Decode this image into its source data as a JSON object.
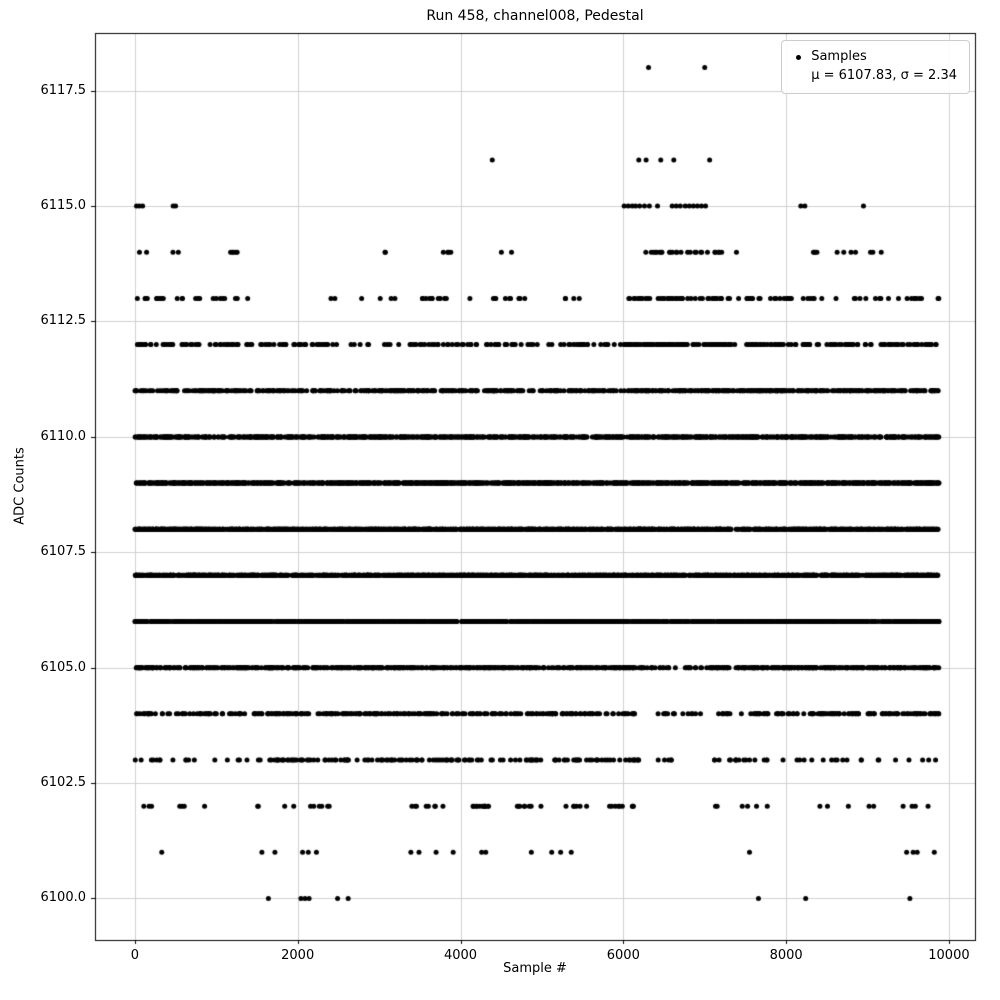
{
  "chart_data": {
    "type": "scatter",
    "title": "Run 458, channel008, Pedestal",
    "xlabel": "Sample #",
    "ylabel": "ADC Counts",
    "xlim": [
      -490,
      10320
    ],
    "ylim": [
      6099.1,
      6118.75
    ],
    "xticks": [
      0,
      2000,
      4000,
      6000,
      8000,
      10000
    ],
    "xtick_labels": [
      "0",
      "2000",
      "4000",
      "6000",
      "8000",
      "10000"
    ],
    "yticks": [
      6100.0,
      6102.5,
      6105.0,
      6107.5,
      6110.0,
      6112.5,
      6115.0,
      6117.5
    ],
    "ytick_labels": [
      "6100.0",
      "6102.5",
      "6105.0",
      "6107.5",
      "6110.0",
      "6112.5",
      "6115.0",
      "6117.5"
    ],
    "grid": true,
    "legend": {
      "position": "upper right",
      "marker_label": "Samples",
      "stats_label": "μ = 6107.83, σ = 2.34"
    },
    "stats": {
      "mean": 6107.83,
      "sigma": 2.34
    },
    "marker": {
      "color": "#000000",
      "radius_px": 2.5
    },
    "grid_color": "#d0d0d0",
    "axis_color": "#000000",
    "x_range": [
      0,
      9880
    ],
    "n_samples_approx": 10000,
    "bands": [
      {
        "adc": 6100,
        "x": [
          1640,
          2040,
          2090,
          2140,
          2490,
          2620,
          7660,
          8240,
          9520
        ]
      },
      {
        "adc": 6101,
        "x": [
          330,
          1560,
          1720,
          2060,
          2130,
          2230,
          3390,
          3490,
          3700,
          3910,
          4260,
          4310,
          4870,
          5120,
          5230,
          5360,
          7550,
          9480,
          9560,
          9610,
          9820
        ]
      },
      {
        "adc": 6102,
        "count": 75,
        "segments": [
          [
            100,
            900,
            0.08
          ],
          [
            1500,
            2600,
            0.18
          ],
          [
            3300,
            3950,
            0.14
          ],
          [
            4150,
            4350,
            0.06
          ],
          [
            4650,
            6150,
            0.28
          ],
          [
            6800,
            7800,
            0.08
          ],
          [
            8400,
            9200,
            0.08
          ],
          [
            9350,
            9880,
            0.1
          ]
        ]
      },
      {
        "adc": 6103,
        "count": 200,
        "segments": [
          [
            0,
            1500,
            0.08
          ],
          [
            1500,
            3100,
            0.3
          ],
          [
            3100,
            4600,
            0.2
          ],
          [
            4600,
            6200,
            0.2
          ],
          [
            6400,
            6600,
            0.02
          ],
          [
            7100,
            7800,
            0.07
          ],
          [
            7900,
            9300,
            0.08
          ],
          [
            9300,
            9880,
            0.05
          ]
        ]
      },
      {
        "adc": 6104,
        "count": 440,
        "segments": [
          [
            0,
            1000,
            0.1
          ],
          [
            1000,
            1500,
            0.04
          ],
          [
            1500,
            3000,
            0.22
          ],
          [
            3000,
            6150,
            0.34
          ],
          [
            6400,
            7000,
            0.02
          ],
          [
            7100,
            9880,
            0.28
          ]
        ]
      },
      {
        "adc": 6105,
        "count": 820,
        "segments": [
          [
            0,
            6150,
            0.63
          ],
          [
            6150,
            7050,
            0.05
          ],
          [
            7050,
            9880,
            0.32
          ]
        ]
      },
      {
        "adc": 6106,
        "count": 1250,
        "segments": [
          [
            0,
            6250,
            0.65
          ],
          [
            6250,
            7050,
            0.05
          ],
          [
            7050,
            9880,
            0.3
          ]
        ]
      },
      {
        "adc": 6107,
        "count": 1600
      },
      {
        "adc": 6108,
        "count": 1700
      },
      {
        "adc": 6109,
        "count": 1500
      },
      {
        "adc": 6110,
        "count": 1100
      },
      {
        "adc": 6111,
        "count": 680,
        "segments": [
          [
            0,
            6000,
            0.55
          ],
          [
            6000,
            9880,
            0.45
          ]
        ]
      },
      {
        "adc": 6112,
        "count": 350,
        "segments": [
          [
            0,
            2400,
            0.22
          ],
          [
            2400,
            3000,
            0.02
          ],
          [
            3000,
            6050,
            0.2
          ],
          [
            6050,
            7650,
            0.33
          ],
          [
            7650,
            9880,
            0.23
          ]
        ]
      },
      {
        "adc": 6113,
        "count": 150,
        "segments": [
          [
            0,
            1300,
            0.15
          ],
          [
            1300,
            2900,
            0.04
          ],
          [
            2900,
            3200,
            0.04
          ],
          [
            3500,
            4000,
            0.05
          ],
          [
            4100,
            4800,
            0.06
          ],
          [
            5200,
            5500,
            0.03
          ],
          [
            6050,
            7600,
            0.38
          ],
          [
            7600,
            9880,
            0.25
          ]
        ]
      },
      {
        "adc": 6114,
        "count": 55,
        "segments": [
          [
            0,
            200,
            0.05
          ],
          [
            400,
            600,
            0.04
          ],
          [
            1150,
            1300,
            0.07
          ],
          [
            3050,
            3150,
            0.04
          ],
          [
            3700,
            3900,
            0.06
          ],
          [
            4400,
            4700,
            0.08
          ],
          [
            6100,
            7250,
            0.42
          ],
          [
            7350,
            7450,
            0.03
          ],
          [
            8300,
            8900,
            0.15
          ],
          [
            9000,
            9200,
            0.06
          ]
        ]
      },
      {
        "adc": 6115,
        "x": [
          20,
          55,
          95,
          470,
          500,
          6010,
          6060,
          6110,
          6150,
          6200,
          6260,
          6320,
          6420,
          6600,
          6650,
          6700,
          6760,
          6810,
          6860,
          6910,
          6960,
          7010,
          8180,
          8230,
          8950
        ]
      },
      {
        "adc": 6116,
        "x": [
          4390,
          6190,
          6280,
          6460,
          6620,
          7060
        ]
      },
      {
        "adc": 6118,
        "x": [
          6310,
          7000
        ]
      }
    ]
  }
}
